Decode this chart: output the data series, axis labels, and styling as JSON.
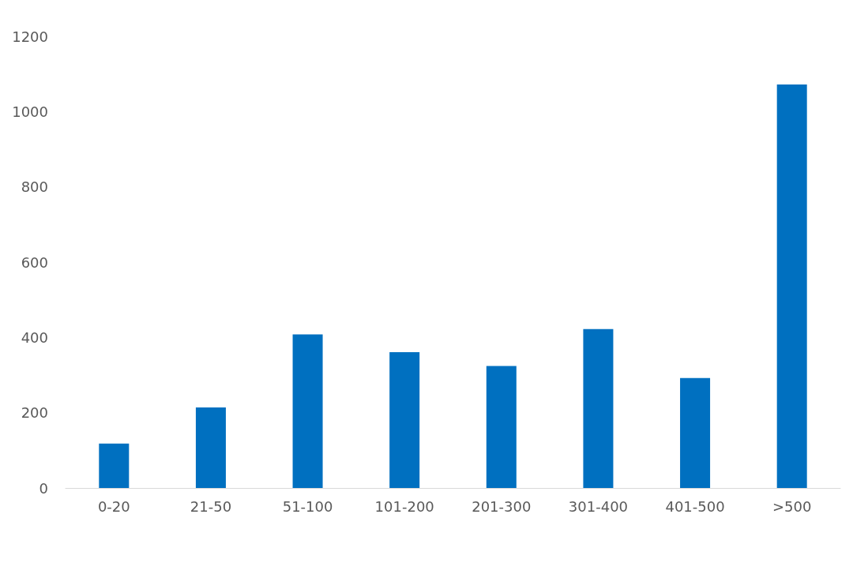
{
  "chart_data": {
    "type": "bar",
    "categories": [
      "0-20",
      "21-50",
      "51-100",
      "101-200",
      "201-300",
      "301-400",
      "401-500",
      ">500"
    ],
    "values": [
      118,
      214,
      408,
      361,
      324,
      422,
      292,
      1072
    ],
    "color": "#0070c0",
    "ylim": [
      0,
      1200
    ],
    "yticks": [
      0,
      200,
      400,
      600,
      800,
      1000,
      1200
    ],
    "grid": false
  }
}
